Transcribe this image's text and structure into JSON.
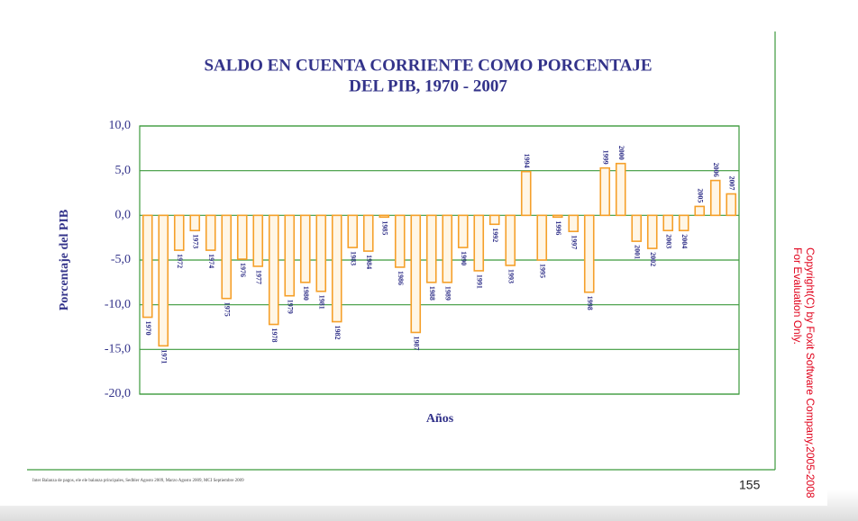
{
  "chart_data": {
    "type": "bar",
    "title": [
      "SALDO EN CUENTA CORRIENTE COMO PORCENTAJE",
      "DEL PIB, 1970 - 2007"
    ],
    "x_label": "Años",
    "y_label": "Porcentaje del PIB",
    "categories": [
      "1970",
      "1971",
      "1972",
      "1973",
      "1974",
      "1975",
      "1976",
      "1977",
      "1978",
      "1979",
      "1980",
      "1981",
      "1982",
      "1983",
      "1984",
      "1985",
      "1986",
      "1987",
      "1988",
      "1989",
      "1990",
      "1991",
      "1992",
      "1993",
      "1994",
      "1995",
      "1996",
      "1997",
      "1998",
      "1999",
      "2000",
      "2001",
      "2002",
      "2003",
      "2004",
      "2005",
      "2006",
      "2007"
    ],
    "values": [
      -11.4,
      -14.6,
      -3.9,
      -1.7,
      -3.9,
      -9.3,
      -4.9,
      -5.7,
      -12.2,
      -9.0,
      -7.5,
      -8.5,
      -11.9,
      -3.6,
      -4.0,
      -0.2,
      -5.8,
      -13.1,
      -7.5,
      -7.5,
      -3.6,
      -6.2,
      -1.0,
      -5.6,
      4.9,
      -5.0,
      -0.2,
      -1.8,
      -8.6,
      5.3,
      5.8,
      -2.9,
      -3.7,
      -1.7,
      -1.7,
      1.0,
      3.9,
      2.4
    ],
    "color": "#f5a02a",
    "ylim": [
      -20,
      10
    ],
    "yticks": [
      {
        "value": -20,
        "label": "-20,0"
      },
      {
        "value": -15,
        "label": "-15,0"
      },
      {
        "value": -10,
        "label": "-10,0"
      },
      {
        "value": -5,
        "label": "-5,0"
      },
      {
        "value": 0,
        "label": "0,0"
      },
      {
        "value": 5,
        "label": "5,0"
      },
      {
        "value": 10,
        "label": "10,0"
      }
    ],
    "grid": true,
    "grid_color": "#3c9a3c"
  },
  "page": {
    "footer": "Inter Balanza de pagos, ele ele balanza principales, Sedbler Agosto 2009, Marzo Agosto 2009, MCI Septiembre 2009",
    "page_number": "155",
    "watermark": [
      "Copyright(C) by Foxit Software Company,2005-2008",
      "For Evaluation Only."
    ]
  }
}
